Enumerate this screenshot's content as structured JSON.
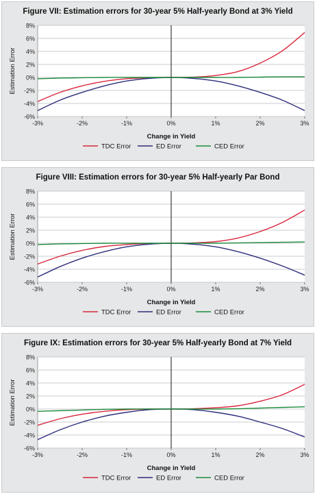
{
  "chart_data": [
    {
      "type": "line",
      "title": "Figure VII: Estimation errors for 30-year 5% Half-yearly Bond at 3% Yield",
      "xlabel": "Change in Yield",
      "ylabel": "Estimation Error",
      "x_ticks": [
        "-3%",
        "-2%",
        "-1%",
        "0%",
        "1%",
        "2%",
        "3%"
      ],
      "y_ticks": [
        "8%",
        "6%",
        "4%",
        "2%",
        "0%",
        "-2%",
        "-4%",
        "-6%"
      ],
      "xlim": [
        -3,
        3
      ],
      "ylim": [
        -6,
        8
      ],
      "legend_position": "bottom",
      "x": [
        -3,
        -2.5,
        -2,
        -1.5,
        -1,
        -0.5,
        0,
        0.5,
        1,
        1.5,
        2,
        2.5,
        3
      ],
      "series": [
        {
          "name": "TDC Error",
          "color": "#d7263d",
          "values": [
            -3.7,
            -2.3,
            -1.3,
            -0.6,
            -0.2,
            -0.05,
            0,
            0.05,
            0.3,
            0.9,
            2.2,
            4.1,
            6.9
          ]
        },
        {
          "name": "ED Error",
          "color": "#2b2b7a",
          "values": [
            -5.1,
            -3.5,
            -2.3,
            -1.3,
            -0.55,
            -0.15,
            0,
            -0.15,
            -0.55,
            -1.3,
            -2.3,
            -3.5,
            -5.1
          ]
        },
        {
          "name": "CED Error",
          "color": "#1a8a3a",
          "values": [
            -0.2,
            -0.1,
            -0.05,
            0,
            0,
            0,
            0,
            0,
            0,
            0,
            0.05,
            0.1,
            0.1
          ]
        }
      ]
    },
    {
      "type": "line",
      "title": "Figure VIII: Estimation errors for 30-year 5% Half-yearly Par Bond",
      "xlabel": "Change in Yield",
      "ylabel": "Estimation Error",
      "x_ticks": [
        "-3%",
        "-2%",
        "-1%",
        "0%",
        "1%",
        "2%",
        "3%"
      ],
      "y_ticks": [
        "8%",
        "6%",
        "4%",
        "2%",
        "0%",
        "-2%",
        "-4%",
        "-6%"
      ],
      "xlim": [
        -3,
        3
      ],
      "ylim": [
        -6,
        8
      ],
      "legend_position": "bottom",
      "x": [
        -3,
        -2.5,
        -2,
        -1.5,
        -1,
        -0.5,
        0,
        0.5,
        1,
        1.5,
        2,
        2.5,
        3
      ],
      "series": [
        {
          "name": "TDC Error",
          "color": "#d7263d",
          "values": [
            -3.2,
            -2.0,
            -1.1,
            -0.5,
            -0.2,
            -0.05,
            0,
            0.05,
            0.25,
            0.8,
            1.8,
            3.2,
            5.1
          ]
        },
        {
          "name": "ED Error",
          "color": "#2b2b7a",
          "values": [
            -5.2,
            -3.6,
            -2.3,
            -1.3,
            -0.55,
            -0.15,
            0,
            -0.15,
            -0.55,
            -1.3,
            -2.3,
            -3.5,
            -4.9
          ]
        },
        {
          "name": "CED Error",
          "color": "#1a8a3a",
          "values": [
            -0.2,
            -0.1,
            -0.05,
            0,
            0,
            0,
            0,
            0,
            0,
            0.05,
            0.1,
            0.15,
            0.2
          ]
        }
      ]
    },
    {
      "type": "line",
      "title": "Figure IX: Estimation errors for 30-year 5% Half-yearly Bond at 7% Yield",
      "xlabel": "Change in Yield",
      "ylabel": "Estimation Error",
      "x_ticks": [
        "-3%",
        "-2%",
        "-1%",
        "0%",
        "1%",
        "2%",
        "3%"
      ],
      "y_ticks": [
        "8%",
        "6%",
        "4%",
        "2%",
        "0%",
        "-2%",
        "-4%",
        "-6%"
      ],
      "xlim": [
        -3,
        3
      ],
      "ylim": [
        -6,
        8
      ],
      "legend_position": "bottom",
      "x": [
        -3,
        -2.5,
        -2,
        -1.5,
        -1,
        -0.5,
        0,
        0.5,
        1,
        1.5,
        2,
        2.5,
        3
      ],
      "series": [
        {
          "name": "TDC Error",
          "color": "#d7263d",
          "values": [
            -2.5,
            -1.5,
            -0.8,
            -0.35,
            -0.1,
            0,
            0,
            0.05,
            0.2,
            0.5,
            1.2,
            2.2,
            3.8
          ]
        },
        {
          "name": "ED Error",
          "color": "#2b2b7a",
          "values": [
            -4.7,
            -3.2,
            -2.0,
            -1.1,
            -0.5,
            -0.1,
            0,
            -0.1,
            -0.5,
            -1.1,
            -2.0,
            -3.0,
            -4.3
          ]
        },
        {
          "name": "CED Error",
          "color": "#1a8a3a",
          "values": [
            -0.35,
            -0.25,
            -0.15,
            -0.05,
            0,
            0,
            0,
            0,
            0,
            0.05,
            0.15,
            0.25,
            0.35
          ]
        }
      ]
    }
  ]
}
